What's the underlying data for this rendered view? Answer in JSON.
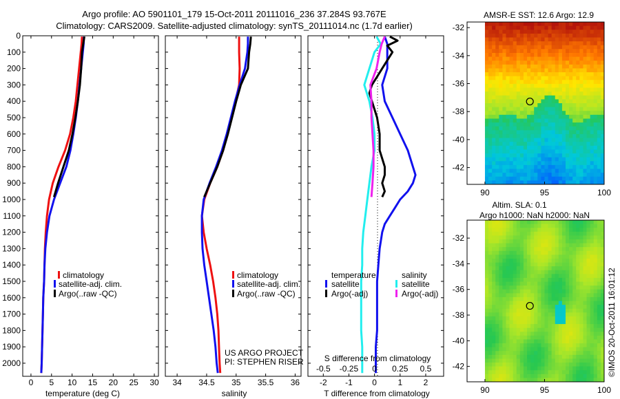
{
  "titles": {
    "line1": "Argo profile: AO 5901101_179 15-Oct-2011 20111016_236 37.284S 93.767E",
    "line2": "Climatology: CARS2009. Satellite-adjusted climatology: synTS_20111014.nc (1.7d earlier)"
  },
  "project_note": {
    "line1": "US ARGO PROJECT",
    "line2": "PI: STEPHEN RISER"
  },
  "credit": "©IMOS 20-Oct-2011 16:01:12",
  "colors": {
    "climatology": "#ee1111",
    "satellite": "#1111ee",
    "argo": "#000000",
    "sal_satellite": "#22eeee",
    "sal_argo": "#ee22ee"
  },
  "chart_data": [
    {
      "type": "line",
      "id": "temperature",
      "xlabel": "temperature (deg C)",
      "xlim": [
        -2,
        31
      ],
      "ylim": [
        2080,
        0
      ],
      "xticks": [
        0,
        5,
        10,
        15,
        20,
        25,
        30
      ],
      "yticks": [
        0,
        100,
        200,
        300,
        400,
        500,
        600,
        700,
        800,
        900,
        1000,
        1100,
        1200,
        1300,
        1400,
        1500,
        1600,
        1700,
        1800,
        1900,
        2000
      ],
      "legend": [
        "climatology",
        "satellite-adj. clim.",
        "Argo(..raw -QC)"
      ],
      "series": [
        {
          "name": "climatology",
          "key": "climatology",
          "depth": [
            5,
            50,
            100,
            200,
            300,
            400,
            500,
            600,
            700,
            800,
            900,
            1000,
            1100,
            1200,
            1300,
            1400,
            1500,
            1600,
            1700,
            1800,
            1900,
            2000,
            2060
          ],
          "x": [
            12.4,
            12.3,
            12.1,
            11.7,
            11.3,
            10.9,
            10.3,
            9.5,
            8.3,
            6.7,
            5.3,
            4.4,
            3.9,
            3.6,
            3.4,
            3.3,
            3.2,
            3.0,
            2.9,
            2.8,
            2.7,
            2.6,
            2.5
          ]
        },
        {
          "name": "satellite-adj. clim.",
          "key": "satellite",
          "depth": [
            5,
            50,
            100,
            200,
            300,
            400,
            500,
            600,
            700,
            800,
            900,
            1000,
            1100,
            1200,
            1300,
            1400,
            1500,
            1600,
            1700,
            1800,
            1900,
            2000,
            2060
          ],
          "x": [
            12.9,
            12.8,
            12.6,
            12.2,
            11.8,
            11.4,
            10.9,
            10.3,
            9.6,
            8.6,
            7.1,
            5.6,
            4.5,
            3.9,
            3.5,
            3.3,
            3.2,
            3.0,
            2.9,
            2.8,
            2.7,
            2.6,
            2.5
          ]
        },
        {
          "name": "Argo(..raw -QC)",
          "key": "argo",
          "depth": [
            5,
            50,
            100,
            200,
            300,
            400,
            500,
            600,
            700,
            800,
            900,
            985
          ],
          "x": [
            13.0,
            12.7,
            12.4,
            12.2,
            11.9,
            11.4,
            10.8,
            10.1,
            9.2,
            7.9,
            6.6,
            5.6
          ]
        }
      ]
    },
    {
      "type": "line",
      "id": "salinity",
      "xlabel": "salinity",
      "xlim": [
        33.8,
        36.1
      ],
      "ylim": [
        2080,
        0
      ],
      "xticks": [
        34,
        34.5,
        35,
        35.5,
        36
      ],
      "legend": [
        "climatology",
        "satellite-adj. clim.",
        "Argo(..raw -QC)"
      ],
      "series": [
        {
          "name": "climatology",
          "key": "climatology",
          "depth": [
            5,
            50,
            100,
            200,
            300,
            400,
            500,
            600,
            700,
            800,
            900,
            1000,
            1100,
            1200,
            1300,
            1400,
            1500,
            1600,
            1700,
            1800,
            1900,
            2000,
            2060
          ],
          "x": [
            35.05,
            35.05,
            35.05,
            35.06,
            35.05,
            34.99,
            34.92,
            34.85,
            34.78,
            34.68,
            34.56,
            34.46,
            34.42,
            34.45,
            34.5,
            34.56,
            34.61,
            34.65,
            34.68,
            34.7,
            34.71,
            34.72,
            34.73
          ]
        },
        {
          "name": "satellite-adj. clim.",
          "key": "satellite",
          "depth": [
            5,
            50,
            100,
            200,
            300,
            400,
            500,
            600,
            700,
            800,
            900,
            1000,
            1100,
            1200,
            1300,
            1400,
            1500,
            1600,
            1700,
            1800,
            1900,
            2000,
            2060
          ],
          "x": [
            35.2,
            35.2,
            35.19,
            35.15,
            35.06,
            34.98,
            34.91,
            34.84,
            34.76,
            34.66,
            34.55,
            34.45,
            34.42,
            34.42,
            34.43,
            34.46,
            34.5,
            34.54,
            34.58,
            34.62,
            34.65,
            34.67,
            34.69
          ]
        },
        {
          "name": "Argo(..raw -QC)",
          "key": "argo",
          "depth": [
            5,
            50,
            100,
            200,
            300,
            400,
            500,
            600,
            700,
            800,
            900,
            985
          ],
          "x": [
            35.25,
            35.24,
            35.22,
            35.2,
            35.08,
            35.0,
            34.93,
            34.86,
            34.78,
            34.68,
            34.56,
            34.46
          ]
        }
      ]
    },
    {
      "type": "line",
      "id": "difference",
      "xlabel": "T difference from climatology",
      "xlabel_top": "S difference from climatology",
      "xlim": [
        -2.6,
        2.7
      ],
      "ylim": [
        2080,
        0
      ],
      "xticks": [
        -2,
        -1,
        0,
        1,
        2
      ],
      "xtick_labels_top": [
        "-0.5",
        "-0.25",
        "0",
        "0.25",
        "0.5"
      ],
      "legend_titles": {
        "temperature": "temperature",
        "salinity": "salinity"
      },
      "legend": [
        "satellite",
        "Argo(-adj)",
        "satellite",
        "Argo(-adj)"
      ],
      "series": [
        {
          "name": "temperature satellite",
          "key": "satellite",
          "depth": [
            5,
            50,
            100,
            200,
            300,
            400,
            500,
            600,
            700,
            750,
            800,
            850,
            900,
            950,
            1000,
            1050,
            1100,
            1150,
            1200,
            1300,
            1400,
            1500,
            1600,
            1700,
            1800,
            1900,
            2000,
            2060
          ],
          "x": [
            0.4,
            0.5,
            0.5,
            0.5,
            0.3,
            0.4,
            0.7,
            1.0,
            1.3,
            1.4,
            1.5,
            1.6,
            1.5,
            1.3,
            1.0,
            0.8,
            0.6,
            0.4,
            0.3,
            0.2,
            0.15,
            0.1,
            0.1,
            0.1,
            0.1,
            0.05,
            0.05,
            0.05
          ]
        },
        {
          "name": "temperature Argo(-adj)",
          "key": "argo",
          "depth": [
            5,
            30,
            60,
            100,
            150,
            200,
            250,
            300,
            350,
            400,
            500,
            600,
            700,
            750,
            800,
            850,
            900,
            950,
            985
          ],
          "x": [
            0.6,
            0.9,
            0.5,
            0.7,
            0.5,
            0.3,
            0.1,
            -0.1,
            -0.2,
            -0.1,
            0.1,
            0.2,
            0.2,
            0.3,
            0.4,
            0.4,
            0.3,
            0.4,
            0.3
          ]
        },
        {
          "name": "salinity satellite",
          "key": "sal_satellite",
          "depth": [
            5,
            50,
            100,
            200,
            300,
            400,
            500,
            600,
            700,
            800,
            900,
            1000,
            1100,
            1200,
            1300,
            1400,
            1500,
            1600,
            1700,
            1800,
            1900,
            2000,
            2060
          ],
          "x": [
            0.02,
            0.06,
            0.0,
            -0.05,
            -0.1,
            -0.05,
            -0.02,
            0.0,
            0.0,
            -0.03,
            -0.05,
            -0.07,
            -0.09,
            -0.11,
            -0.12,
            -0.12,
            -0.13,
            -0.13,
            -0.13,
            -0.13,
            -0.12,
            -0.12,
            -0.12
          ]
        },
        {
          "name": "salinity Argo(-adj)",
          "key": "sal_argo",
          "depth": [
            5,
            50,
            100,
            200,
            300,
            400,
            500,
            600,
            700,
            800,
            900,
            985
          ],
          "x": [
            0.1,
            0.07,
            0.05,
            0.02,
            -0.04,
            -0.03,
            -0.03,
            -0.02,
            -0.01,
            -0.01,
            -0.02,
            -0.03
          ]
        }
      ]
    },
    {
      "type": "heatmap",
      "id": "sst_map",
      "title": "AMSR-E SST: 12.6 Argo: 12.9",
      "xlim": [
        88.5,
        100
      ],
      "ylim": [
        -43.2,
        -31.6
      ],
      "xticks": [
        90,
        95,
        100
      ],
      "yticks": [
        -32,
        -34,
        -36,
        -38,
        -40,
        -42
      ],
      "marker": {
        "lon": 93.77,
        "lat": -37.28
      }
    },
    {
      "type": "heatmap",
      "id": "sla_map",
      "title": "Altim. SLA: 0.1",
      "subtitle": "Argo h1000: NaN h2000: NaN",
      "xlim": [
        88.5,
        100
      ],
      "ylim": [
        -43.2,
        -30.6
      ],
      "xticks": [
        90,
        95,
        100
      ],
      "yticks": [
        -32,
        -34,
        -36,
        -38,
        -40,
        -42
      ],
      "marker": {
        "lon": 93.77,
        "lat": -37.28
      }
    }
  ]
}
